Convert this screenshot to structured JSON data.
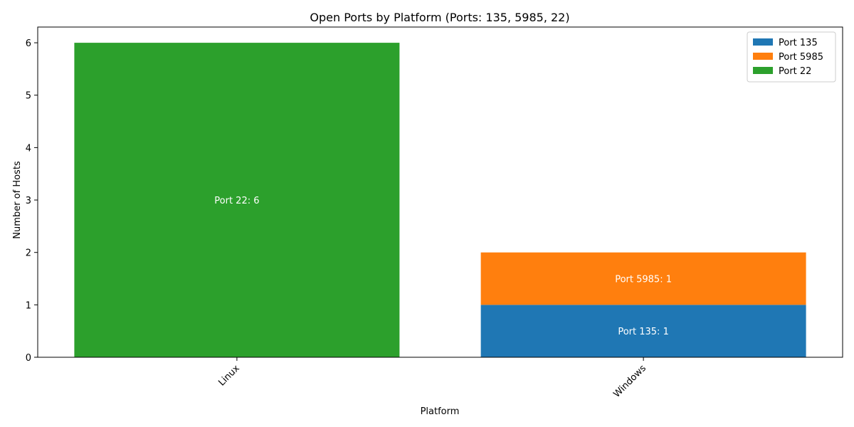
{
  "chart_data": {
    "type": "bar",
    "stacked": true,
    "title": "Open Ports by Platform (Ports: 135, 5985, 22)",
    "xlabel": "Platform",
    "ylabel": "Number of Hosts",
    "categories": [
      "Linux",
      "Windows"
    ],
    "series": [
      {
        "name": "Port 135",
        "color": "#1f77b4",
        "values": [
          0,
          1
        ]
      },
      {
        "name": "Port 5985",
        "color": "#ff7f0e",
        "values": [
          0,
          1
        ]
      },
      {
        "name": "Port 22",
        "color": "#2ca02c",
        "values": [
          6,
          0
        ]
      }
    ],
    "bar_labels": [
      {
        "category": "Linux",
        "series": "Port 22",
        "text": "Port 22: 6"
      },
      {
        "category": "Windows",
        "series": "Port 5985",
        "text": "Port 5985: 1"
      },
      {
        "category": "Windows",
        "series": "Port 135",
        "text": "Port 135: 1"
      }
    ],
    "ylim": [
      0,
      6
    ],
    "yticks": [
      0,
      1,
      2,
      3,
      4,
      5,
      6
    ],
    "grid": false,
    "legend_position": "top-right"
  }
}
